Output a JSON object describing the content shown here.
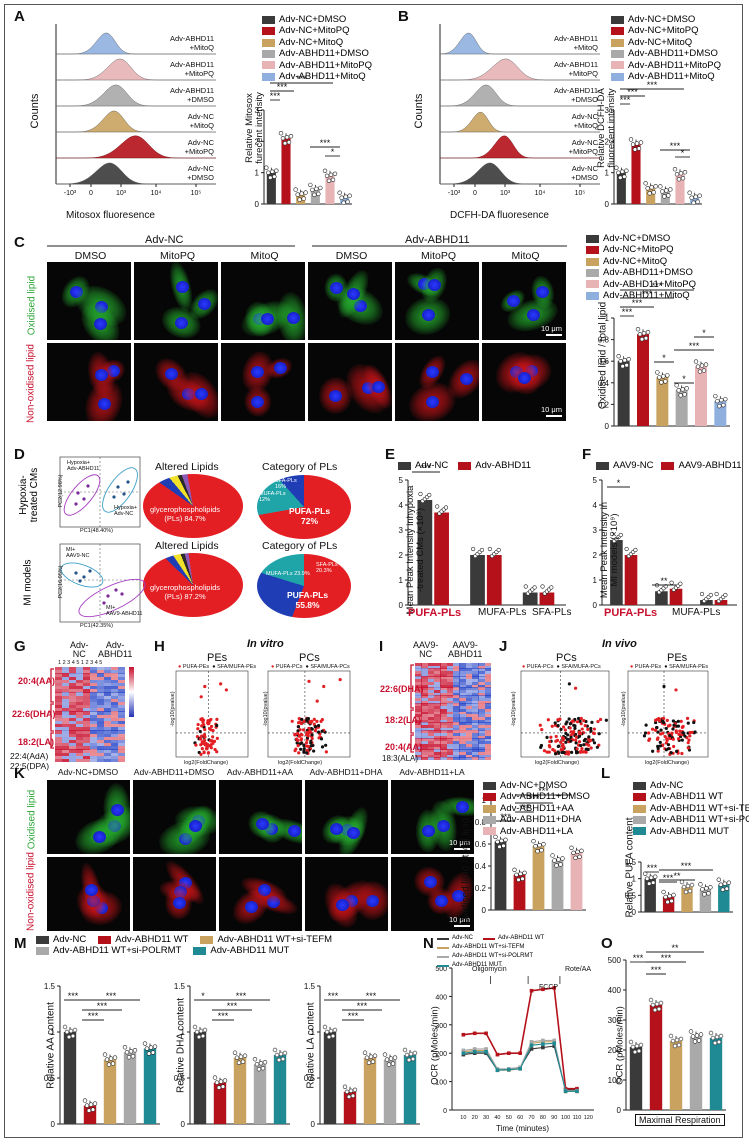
{
  "panels": [
    "A",
    "B",
    "C",
    "D",
    "E",
    "F",
    "G",
    "H",
    "I",
    "J",
    "K",
    "L",
    "M",
    "N",
    "O"
  ],
  "colors": {
    "nc_dmso": "#3a3a3a",
    "nc_mitopq": "#b4111a",
    "nc_mitoq": "#c9a25f",
    "abhd_dmso": "#a9a9a9",
    "abhd_mitopq": "#e7b3b5",
    "abhd_mitoq": "#8fb0df",
    "teal": "#1f8a94"
  },
  "legend_A": [
    "Adv-NC+DMSO",
    "Adv-NC+MitoPQ",
    "Adv-NC+MitoQ",
    "Adv-ABHD11+DMSO",
    "Adv-ABHD11+MitoPQ",
    "Adv-ABHD11+MitoQ"
  ],
  "A": {
    "xlabel": "Mitosox fluoresence",
    "ylabel": "Counts",
    "ticks": [
      "-10³",
      "0",
      "10³",
      "10⁴",
      "10⁵"
    ],
    "rows": [
      "Adv-ABHD11\n+MitoQ",
      "Adv-ABHD11\n+MitoPQ",
      "Adv-ABHD11\n+DMSO",
      "Adv-NC\n+MitoQ",
      "Adv-NC\n+MitoPQ",
      "Adv-NC\n+DMSO"
    ],
    "bar_ylabel": "Relative Mitosox\nfurecent intensity",
    "sig": [
      "***",
      "***",
      "***",
      "*",
      "***"
    ]
  },
  "B": {
    "xlabel": "DCFH-DA fluoresence",
    "ylabel": "Counts",
    "ticks": [
      "-10³",
      "0",
      "10³",
      "10⁴",
      "10⁵"
    ],
    "rows": [
      "Adv-ABHD11\n+MitoQ",
      "Adv-ABHD11\n+MitoPQ",
      "Adv-ABHD11\n+DMSO",
      "Adv-NC\n+MitoQ",
      "Adv-NC\n+MitoPQ",
      "Adv-NC\n+DMSO"
    ],
    "bar_ylabel": "Relative DCFH-DA\nfluorecent intensity",
    "sig": [
      "***",
      "***",
      "***",
      "*",
      "***"
    ]
  },
  "C": {
    "group1": "Adv-NC",
    "group2": "Adv-ABHD11",
    "cols": [
      "DMSO",
      "MitoPQ",
      "MitoQ",
      "DMSO",
      "MitoPQ",
      "MitoQ"
    ],
    "row1": "Oxidised  lipid",
    "row2": "Non-oxidised  lipid",
    "scale": "10 μm",
    "bar_ylabel": "Oxidised lipid / total lipid",
    "sig": [
      "***",
      "***",
      "***",
      "***",
      "*",
      "*",
      "***",
      "*"
    ]
  },
  "D": {
    "row1": "Hypoxia-\ntreated CMs",
    "row2": "MI models",
    "pie_title1": "Altered Lipids",
    "pie_title2": "Category of PLs",
    "pca1": {
      "xlabel": "PC1(48.40%)",
      "ylabel": "PC2(12.98%)",
      "g1": "Hypoxia+\nAdv-ABHD11",
      "g2": "Hypoxia+\nAdv-NC"
    },
    "pca2": {
      "xlabel": "PC1(42.35%)",
      "ylabel": "PC2(16.05%)",
      "g1": "MI+\nAAV9-NC",
      "g2": "MI+\nAAV9-ABHD11"
    },
    "pie1": "glycerophospholipids\n(PLs) 84.7%",
    "pie2": "PUFA-PLs\n72%",
    "pie3": "glycerophospholipids\n(PLs) 87.2%",
    "pie4": "PUFA-PLs\n55.8%",
    "mini": [
      "SFA-PLs\n16%",
      "MUFA-PLs\n12%",
      "MUFA-PLs\n23.9%",
      "SFA-PLs\n20.3%"
    ]
  },
  "E": {
    "legend": [
      "Adv-NC",
      "Adv-ABHD11"
    ],
    "ylabel": "Mean Peak Intensity inhypoxia\n-treated CMs (×10⁹)",
    "cats": [
      "PUFA-PLs",
      "MUFA-PLs",
      "SFA-PLs"
    ],
    "sig": "***"
  },
  "F": {
    "legend": [
      "AAV9-NC",
      "AAV9-ABHD11"
    ],
    "ylabel": "Mean Peak Intensity in\nMI models (×10⁹)",
    "cats": [
      "PUFA-PLs",
      "MUFA-PLs",
      "SFA-PLs"
    ],
    "sig": [
      "*",
      "**"
    ]
  },
  "G": {
    "cols": [
      "Adv-\nNC",
      "Adv-\nABHD11"
    ],
    "nums": "1 2 3 4 5 1 2 3 4 5",
    "rows": [
      "20:4(AA)",
      "22:6(DHA)",
      "18:2(LA)",
      "22:4(AdA)",
      "22:5(DPA)"
    ]
  },
  "H": {
    "title": "In vitro",
    "sub1": "PEs",
    "sub2": "PCs",
    "leg1": "PUFA-PEs",
    "leg2": "SFA/MUFA-PEs",
    "leg3": "PUFA-PCs",
    "leg4": "SFA/MUFA-PCs",
    "xlabel": "log2(FoldChange)",
    "ylabel": "-log10(pvalue)"
  },
  "I": {
    "cols": [
      "AAV9-\nNC",
      "AAV9-\nABHD11"
    ],
    "rows": [
      "22:6(DHA)",
      "18:2(LA)",
      "20:4(AA)",
      "18:3(ALA)",
      "22:4(AdA)"
    ]
  },
  "J": {
    "title": "In vivo",
    "sub1": "PCs",
    "sub2": "PEs",
    "leg1": "PUFA-PCs",
    "leg2": "SFA/MUFA-PCs",
    "leg3": "PUFA-PEs",
    "leg4": "SFA/MUFA-PEs",
    "xlabel": "log2(FoldChange)",
    "ylabel": "-log10(pvalue)"
  },
  "K": {
    "cols": [
      "Adv-NC+DMSO",
      "Adv-ABHD11+DMSO",
      "Adv-ABHD11+AA",
      "Adv-ABHD11+DHA",
      "Adv-ABHD11+LA"
    ],
    "row1": "Oxidised  lipid",
    "row2": "Non-oxidised  lipid",
    "scale": "10 μm",
    "bar_ylabel": "Oxidised lipid / total lipid",
    "sig": [
      "***",
      "***",
      "***",
      "***"
    ],
    "legend": [
      "Adv-NC+DMSO",
      "Adv-ABHD11+DMSO",
      "Adv-ABHD11+AA",
      "Adv-ABHD11+DHA",
      "Adv-ABHD11+LA"
    ]
  },
  "L": {
    "legend": [
      "Adv-NC",
      "Adv-ABHD11 WT",
      "Adv-ABHD11 WT+si-TEFM",
      "Adv-ABHD11 WT+si-POLRMT",
      "Adv-ABHD11 MUT"
    ],
    "ylabel": "Relative PUFA content",
    "sig": [
      "***",
      "***",
      "***",
      "**"
    ]
  },
  "M": {
    "legend": [
      "Adv-NC",
      "Adv-ABHD11 WT",
      "Adv-ABHD11 WT+si-TEFM",
      "Adv-ABHD11 WT+si-POLRMT",
      "Adv-ABHD11 MUT"
    ],
    "y1": "Relative AA content",
    "y2": "Relative DHA content",
    "y3": "Relative LA content",
    "sig": [
      "***",
      "***",
      "***",
      "***",
      "*",
      "***",
      "***",
      "***",
      "***",
      "***"
    ]
  },
  "N": {
    "legend": [
      "Adv-NC",
      "Adv-ABHD11 WT",
      "Adv-ABHD11 WT+si-TEFM",
      "Adv-ABHD11 WT+si-POLRMT",
      "Adv-ABHD11 MUT"
    ],
    "ylabel": "OCR (pMoles/min)",
    "xlabel": "Time (minutes)",
    "ann": [
      "Oligomycin",
      "FCCP",
      "Rote/AA"
    ],
    "xticks": [
      "10",
      "20",
      "30",
      "40",
      "50",
      "60",
      "70",
      "80",
      "90",
      "100",
      "110",
      "120"
    ],
    "yticks": [
      "0",
      "100",
      "200",
      "300",
      "400",
      "500"
    ]
  },
  "O": {
    "ylabel": "OCR (pMoles/min)",
    "xlabel": "Maximal Respiration",
    "sig": [
      "***",
      "***",
      "***",
      "**"
    ],
    "yticks": [
      "0",
      "100",
      "200",
      "300",
      "400",
      "500"
    ]
  },
  "chart_data": [
    {
      "type": "bar",
      "id": "A-bar",
      "categories": [
        "Adv-NC+DMSO",
        "Adv-NC+MitoPQ",
        "Adv-NC+MitoQ",
        "Adv-ABHD11+DMSO",
        "Adv-ABHD11+MitoPQ",
        "Adv-ABHD11+MitoQ"
      ],
      "values": [
        1.0,
        2.1,
        0.3,
        0.45,
        0.9,
        0.2
      ],
      "ylim": [
        0,
        3
      ],
      "yticks": [
        0,
        1,
        2,
        3
      ]
    },
    {
      "type": "bar",
      "id": "B-bar",
      "categories": [
        "Adv-NC+DMSO",
        "Adv-NC+MitoPQ",
        "Adv-NC+MitoQ",
        "Adv-ABHD11+DMSO",
        "Adv-ABHD11+MitoPQ",
        "Adv-ABHD11+MitoQ"
      ],
      "values": [
        1.0,
        1.9,
        0.5,
        0.4,
        0.95,
        0.2
      ],
      "ylim": [
        0,
        3
      ],
      "yticks": [
        0,
        1,
        2,
        3
      ]
    },
    {
      "type": "bar",
      "id": "C-bar",
      "categories": [
        "Adv-NC+DMSO",
        "Adv-NC+MitoPQ",
        "Adv-NC+MitoQ",
        "Adv-ABHD11+DMSO",
        "Adv-ABHD11+MitoPQ",
        "Adv-ABHD11+MitoQ"
      ],
      "values": [
        0.6,
        0.85,
        0.45,
        0.33,
        0.55,
        0.23
      ],
      "ylim": [
        0,
        1.0
      ],
      "yticks": [
        0,
        0.2,
        0.4,
        0.6,
        0.8,
        1.0
      ]
    },
    {
      "type": "bar",
      "id": "E-bar",
      "categories": [
        "PUFA-PLs",
        "MUFA-PLs",
        "SFA-PLs"
      ],
      "series": [
        {
          "name": "Adv-NC",
          "values": [
            4.2,
            2.0,
            0.5
          ]
        },
        {
          "name": "Adv-ABHD11",
          "values": [
            3.7,
            2.0,
            0.5
          ]
        }
      ],
      "ylim": [
        0,
        5
      ],
      "yticks": [
        0,
        1,
        2,
        3,
        4,
        5
      ]
    },
    {
      "type": "bar",
      "id": "F-bar",
      "categories": [
        "PUFA-PLs",
        "MUFA-PLs",
        "SFA-PLs"
      ],
      "series": [
        {
          "name": "AAV9-NC",
          "values": [
            2.6,
            0.55,
            0.2
          ]
        },
        {
          "name": "AAV9-ABHD11",
          "values": [
            2.0,
            0.65,
            0.2
          ]
        }
      ],
      "ylim": [
        0,
        5
      ],
      "yticks": [
        0,
        1,
        2,
        3,
        4,
        5
      ]
    },
    {
      "type": "bar",
      "id": "K-bar",
      "categories": [
        "Adv-NC+DMSO",
        "Adv-ABHD11+DMSO",
        "Adv-ABHD11+AA",
        "Adv-ABHD11+DHA",
        "Adv-ABHD11+LA"
      ],
      "values": [
        0.62,
        0.32,
        0.58,
        0.45,
        0.52
      ],
      "ylim": [
        0,
        1.0
      ],
      "yticks": [
        0,
        0.2,
        0.4,
        0.6,
        0.8,
        1.0
      ]
    },
    {
      "type": "bar",
      "id": "L-bar",
      "categories": [
        "Adv-NC",
        "Adv-ABHD11 WT",
        "Adv-ABHD11 WT+si-TEFM",
        "Adv-ABHD11 WT+si-POLRMT",
        "Adv-ABHD11 MUT"
      ],
      "values": [
        1.0,
        0.45,
        0.75,
        0.68,
        0.82
      ],
      "ylim": [
        0,
        1.5
      ],
      "yticks": [
        0,
        0.5,
        1.0,
        1.5
      ]
    },
    {
      "type": "bar",
      "id": "M-AA",
      "categories": [
        "Adv-NC",
        "Adv-ABHD11 WT",
        "Adv-ABHD11 WT+si-TEFM",
        "Adv-ABHD11 WT+si-POLRMT",
        "Adv-ABHD11 MUT"
      ],
      "values": [
        1.0,
        0.2,
        0.7,
        0.78,
        0.82
      ],
      "ylim": [
        0,
        1.5
      ],
      "yticks": [
        0,
        0.5,
        1.0,
        1.5
      ]
    },
    {
      "type": "bar",
      "id": "M-DHA",
      "categories": [
        "Adv-NC",
        "Adv-ABHD11 WT",
        "Adv-ABHD11 WT+si-TEFM",
        "Adv-ABHD11 WT+si-POLRMT",
        "Adv-ABHD11 MUT"
      ],
      "values": [
        1.0,
        0.45,
        0.72,
        0.65,
        0.75
      ],
      "ylim": [
        0,
        1.5
      ],
      "yticks": [
        0,
        0.5,
        1.0,
        1.5
      ]
    },
    {
      "type": "bar",
      "id": "M-LA",
      "categories": [
        "Adv-NC",
        "Adv-ABHD11 WT",
        "Adv-ABHD11 WT+si-TEFM",
        "Adv-ABHD11 WT+si-POLRMT",
        "Adv-ABHD11 MUT"
      ],
      "values": [
        1.0,
        0.35,
        0.72,
        0.7,
        0.75
      ],
      "ylim": [
        0,
        1.5
      ],
      "yticks": [
        0,
        0.5,
        1.0,
        1.5
      ]
    },
    {
      "type": "line",
      "id": "N-line",
      "x": [
        10,
        20,
        30,
        40,
        50,
        60,
        70,
        80,
        90,
        100,
        110
      ],
      "series": [
        {
          "name": "Adv-NC",
          "values": [
            195,
            200,
            200,
            140,
            145,
            150,
            215,
            220,
            225,
            70,
            70
          ]
        },
        {
          "name": "Adv-ABHD11 WT",
          "values": [
            265,
            270,
            270,
            195,
            200,
            200,
            420,
            425,
            430,
            75,
            75
          ]
        },
        {
          "name": "Adv-ABHD11 WT+si-TEFM",
          "values": [
            205,
            210,
            210,
            140,
            140,
            145,
            235,
            240,
            240,
            65,
            65
          ]
        },
        {
          "name": "Adv-ABHD11 WT+si-POLRMT",
          "values": [
            210,
            215,
            215,
            145,
            145,
            150,
            240,
            245,
            245,
            68,
            68
          ]
        },
        {
          "name": "Adv-ABHD11 MUT",
          "values": [
            200,
            205,
            205,
            140,
            142,
            145,
            228,
            232,
            235,
            66,
            66
          ]
        }
      ],
      "ylim": [
        0,
        500
      ]
    },
    {
      "type": "bar",
      "id": "O-bar",
      "categories": [
        "Adv-NC",
        "Adv-ABHD11 WT",
        "Adv-ABHD11 WT+si-TEFM",
        "Adv-ABHD11 WT+si-POLRMT",
        "Adv-ABHD11 MUT"
      ],
      "values": [
        210,
        350,
        230,
        245,
        240
      ],
      "ylim": [
        0,
        500
      ],
      "yticks": [
        0,
        100,
        200,
        300,
        400,
        500
      ]
    }
  ]
}
